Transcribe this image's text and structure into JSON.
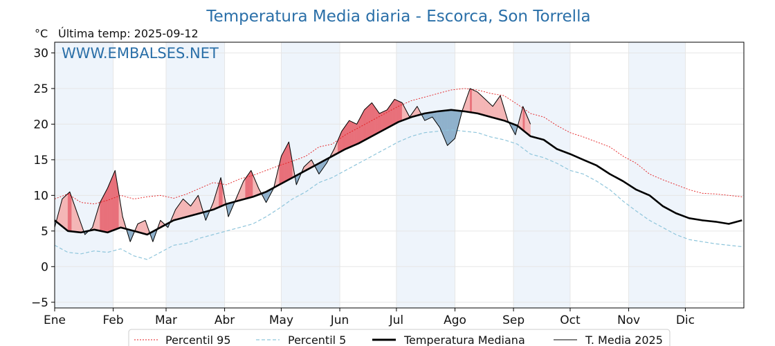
{
  "chart_data": {
    "type": "line",
    "title": "Temperatura Media diaria - Escorca, Son Torrella",
    "unit_label": "°C",
    "last_temp_label": "Última temp: 2025-09-12",
    "watermark": "WWW.EMBALSES.NET",
    "ylim": [
      -5.8,
      31.5
    ],
    "yticks": [
      -5,
      0,
      5,
      10,
      15,
      20,
      25,
      30
    ],
    "ytick_labels": [
      "−5",
      "0",
      "5",
      "10",
      "15",
      "20",
      "25",
      "30"
    ],
    "months": [
      "Ene",
      "Feb",
      "Mar",
      "Abr",
      "May",
      "Jun",
      "Jul",
      "Ago",
      "Sep",
      "Oct",
      "Nov",
      "Dic"
    ],
    "month_start_days": [
      1,
      32,
      60,
      91,
      121,
      152,
      182,
      213,
      244,
      274,
      305,
      335
    ],
    "grid": true,
    "legend_position": "bottom-center",
    "colors": {
      "p95": "#e31a1c",
      "p5": "#8ec5db",
      "median": "#000000",
      "y2025": "#000000",
      "above_fill": "#f4b6b6",
      "above_strong_fill": "#e8707a",
      "below_fill": "#8fb1cc",
      "band": "#eef4fb",
      "title": "#2a6fa8"
    },
    "series": [
      {
        "name": "Percentil 95",
        "style": "dotted-red",
        "x": [
          1,
          8,
          15,
          22,
          29,
          36,
          43,
          50,
          57,
          64,
          71,
          78,
          85,
          92,
          99,
          106,
          113,
          120,
          127,
          134,
          141,
          148,
          155,
          162,
          169,
          176,
          183,
          190,
          197,
          204,
          211,
          218,
          225,
          232,
          239,
          246,
          253,
          260,
          267,
          274,
          281,
          288,
          295,
          302,
          309,
          316,
          323,
          330,
          337,
          344,
          351,
          358,
          365
        ],
        "y": [
          9.5,
          10.2,
          9.0,
          8.8,
          9.3,
          10.0,
          9.5,
          9.8,
          10.0,
          9.6,
          10.2,
          11.0,
          11.8,
          11.5,
          12.3,
          12.8,
          13.5,
          14.2,
          14.8,
          15.5,
          16.8,
          17.2,
          18.5,
          19.5,
          20.5,
          21.5,
          22.5,
          23.3,
          23.8,
          24.3,
          24.8,
          25.0,
          24.8,
          24.3,
          24.0,
          22.8,
          21.5,
          21.0,
          19.8,
          18.8,
          18.2,
          17.5,
          16.8,
          15.5,
          14.5,
          13.0,
          12.2,
          11.5,
          10.8,
          10.3,
          10.2,
          10.0,
          9.8
        ]
      },
      {
        "name": "Percentil 5",
        "style": "dashed-lightblue",
        "x": [
          1,
          8,
          15,
          22,
          29,
          36,
          43,
          50,
          57,
          64,
          71,
          78,
          85,
          92,
          99,
          106,
          113,
          120,
          127,
          134,
          141,
          148,
          155,
          162,
          169,
          176,
          183,
          190,
          197,
          204,
          211,
          218,
          225,
          232,
          239,
          246,
          253,
          260,
          267,
          274,
          281,
          288,
          295,
          302,
          309,
          316,
          323,
          330,
          337,
          344,
          351,
          358,
          365
        ],
        "y": [
          3.0,
          2.0,
          1.8,
          2.2,
          2.0,
          2.5,
          1.5,
          1.0,
          2.0,
          3.0,
          3.3,
          4.0,
          4.5,
          5.0,
          5.5,
          6.0,
          7.0,
          8.2,
          9.5,
          10.5,
          11.8,
          12.5,
          13.5,
          14.5,
          15.5,
          16.5,
          17.5,
          18.3,
          18.8,
          19.0,
          19.2,
          19.0,
          18.8,
          18.2,
          17.8,
          17.2,
          15.8,
          15.3,
          14.5,
          13.5,
          13.0,
          12.0,
          10.8,
          9.2,
          7.8,
          6.5,
          5.5,
          4.5,
          3.8,
          3.5,
          3.2,
          3.0,
          2.8
        ]
      },
      {
        "name": "Temperatura Mediana",
        "style": "thick-black",
        "x": [
          1,
          8,
          15,
          22,
          29,
          36,
          43,
          50,
          57,
          64,
          71,
          78,
          85,
          92,
          99,
          106,
          113,
          120,
          127,
          134,
          141,
          148,
          155,
          162,
          169,
          176,
          183,
          190,
          197,
          204,
          211,
          218,
          225,
          232,
          239,
          246,
          253,
          260,
          267,
          274,
          281,
          288,
          295,
          302,
          309,
          316,
          323,
          330,
          337,
          344,
          351,
          358,
          365
        ],
        "y": [
          6.5,
          5.0,
          4.8,
          5.2,
          4.8,
          5.5,
          5.0,
          4.5,
          5.5,
          6.5,
          7.0,
          7.5,
          8.0,
          8.8,
          9.3,
          9.8,
          10.5,
          11.5,
          12.5,
          13.5,
          14.5,
          15.5,
          16.5,
          17.3,
          18.3,
          19.3,
          20.3,
          21.0,
          21.5,
          21.8,
          22.0,
          21.8,
          21.5,
          21.0,
          20.5,
          19.8,
          18.3,
          17.8,
          16.5,
          15.8,
          15.0,
          14.2,
          13.0,
          12.0,
          10.8,
          10.0,
          8.5,
          7.5,
          6.8,
          6.5,
          6.3,
          6.0,
          6.5
        ]
      },
      {
        "name": "T. Media 2025",
        "style": "thin-black",
        "x": [
          1,
          5,
          9,
          13,
          17,
          21,
          25,
          29,
          33,
          37,
          41,
          45,
          49,
          53,
          57,
          61,
          65,
          69,
          73,
          77,
          81,
          85,
          89,
          93,
          97,
          101,
          105,
          109,
          113,
          117,
          121,
          125,
          129,
          133,
          137,
          141,
          145,
          149,
          153,
          157,
          161,
          165,
          169,
          173,
          177,
          181,
          185,
          189,
          193,
          197,
          201,
          205,
          209,
          213,
          217,
          221,
          225,
          229,
          233,
          237,
          241,
          245,
          249,
          253
        ],
        "y": [
          5.5,
          9.5,
          10.5,
          7.5,
          4.5,
          5.5,
          9.0,
          11.0,
          13.5,
          7.0,
          3.5,
          6.0,
          6.5,
          3.5,
          6.5,
          5.5,
          8.0,
          9.5,
          8.5,
          10.0,
          6.5,
          9.0,
          12.5,
          7.0,
          9.5,
          12.0,
          13.5,
          11.0,
          9.0,
          11.0,
          15.5,
          17.5,
          11.5,
          14.0,
          15.0,
          13.0,
          14.5,
          16.5,
          19.0,
          20.5,
          20.0,
          22.0,
          23.0,
          21.5,
          22.0,
          23.5,
          23.0,
          21.0,
          22.5,
          20.5,
          21.0,
          19.5,
          17.0,
          18.0,
          22.0,
          25.0,
          24.5,
          23.5,
          22.5,
          24.0,
          20.5,
          18.5,
          22.5,
          20.0
        ]
      }
    ]
  }
}
